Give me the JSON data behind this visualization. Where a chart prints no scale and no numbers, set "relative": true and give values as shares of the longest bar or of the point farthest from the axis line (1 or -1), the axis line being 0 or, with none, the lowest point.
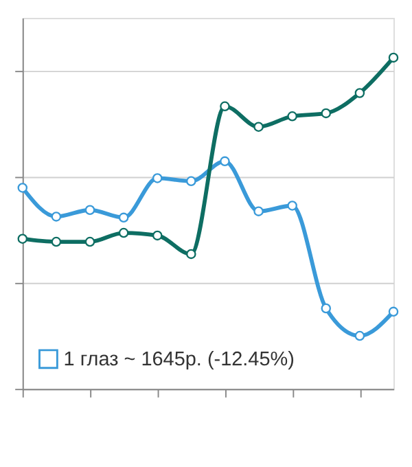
{
  "chart_data": {
    "type": "line",
    "relative": true,
    "grid": "y",
    "legend": "bottom left",
    "marker": "circle",
    "line_style": "solid",
    "categories": [
      null,
      null,
      null,
      null,
      null,
      null,
      null,
      null,
      null,
      null,
      null,
      null
    ],
    "series": [
      {
        "name": "1 глаз ~ 1645р. (-12.45%)",
        "color": "#3a9ad9",
        "values": [
          0.607,
          0.52,
          0.54,
          0.517,
          0.636,
          0.627,
          0.687,
          0.536,
          0.553,
          0.243,
          0.16,
          0.233
        ]
      },
      {
        "color": "#0e6e63",
        "values": [
          0.453,
          0.444,
          0.444,
          0.471,
          0.463,
          0.407,
          0.853,
          0.791,
          0.823,
          0.832,
          0.893,
          1.0
        ]
      }
    ]
  }
}
